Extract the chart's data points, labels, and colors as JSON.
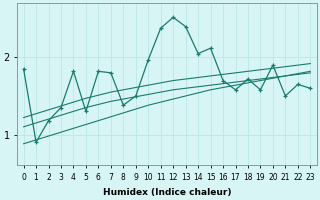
{
  "title": "",
  "xlabel": "Humidex (Indice chaleur)",
  "bg_color": "#d8f5f5",
  "grid_color": "#c0e8e8",
  "line_color": "#1a7a6e",
  "x_data": [
    0,
    1,
    2,
    3,
    4,
    5,
    6,
    7,
    8,
    9,
    10,
    11,
    12,
    13,
    14,
    15,
    16,
    17,
    18,
    19,
    20,
    21,
    22,
    23
  ],
  "y_data": [
    1.85,
    0.9,
    1.18,
    1.35,
    1.82,
    1.3,
    1.82,
    1.8,
    1.38,
    1.5,
    1.97,
    2.38,
    2.52,
    2.4,
    2.05,
    2.12,
    1.7,
    1.58,
    1.72,
    1.58,
    1.9,
    1.5,
    1.65,
    1.6
  ],
  "trend_top": [
    1.22,
    1.27,
    1.32,
    1.37,
    1.42,
    1.47,
    1.51,
    1.55,
    1.58,
    1.61,
    1.64,
    1.67,
    1.7,
    1.72,
    1.74,
    1.76,
    1.78,
    1.8,
    1.82,
    1.84,
    1.86,
    1.88,
    1.9,
    1.92
  ],
  "trend_mid": [
    1.1,
    1.15,
    1.2,
    1.25,
    1.3,
    1.35,
    1.39,
    1.43,
    1.46,
    1.49,
    1.52,
    1.55,
    1.58,
    1.6,
    1.62,
    1.64,
    1.66,
    1.68,
    1.7,
    1.72,
    1.74,
    1.76,
    1.78,
    1.8
  ],
  "trend_bot": [
    0.88,
    0.93,
    0.98,
    1.03,
    1.08,
    1.13,
    1.18,
    1.23,
    1.28,
    1.33,
    1.38,
    1.42,
    1.46,
    1.5,
    1.54,
    1.58,
    1.61,
    1.64,
    1.67,
    1.7,
    1.73,
    1.76,
    1.79,
    1.82
  ],
  "ylim": [
    0.6,
    2.7
  ],
  "yticks": [
    1.0,
    2.0
  ],
  "ytick_labels": [
    "1",
    "2"
  ],
  "xticks": [
    0,
    1,
    2,
    3,
    4,
    5,
    6,
    7,
    8,
    9,
    10,
    11,
    12,
    13,
    14,
    15,
    16,
    17,
    18,
    19,
    20,
    21,
    22,
    23
  ],
  "figsize": [
    3.2,
    2.0
  ],
  "dpi": 100
}
